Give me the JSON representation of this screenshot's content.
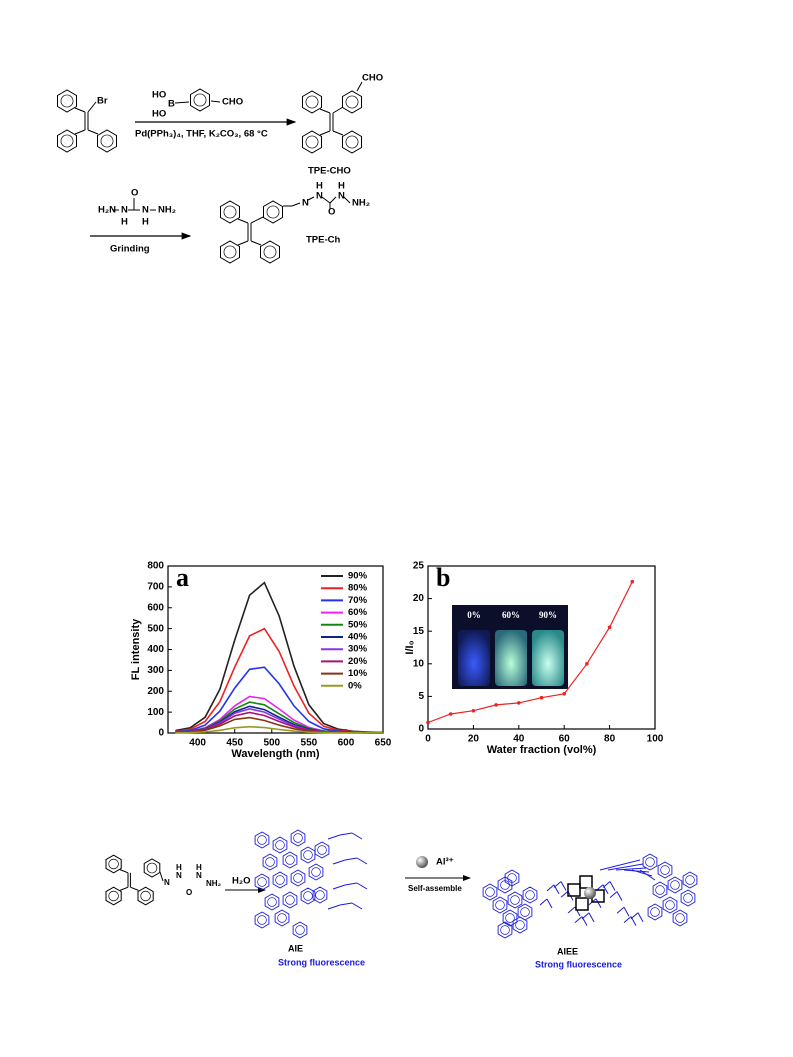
{
  "scheme1": {
    "reactant_label": "Br",
    "boronic_labels": [
      "HO",
      "B",
      "HO",
      "CHO"
    ],
    "conditions1": "Pd(PPh₃)₄, THF, K₂CO₃, 68 °C",
    "product1_label": "CHO",
    "product1_name": "TPE-CHO",
    "reagent_labels": [
      "H₂N",
      "N",
      "H",
      "O",
      "N",
      "H",
      "NH₂"
    ],
    "conditions2": "Grinding",
    "product2_labels": [
      "N",
      "N",
      "H",
      "O",
      "N",
      "H",
      "NH₂"
    ],
    "product2_name": "TPE-Ch"
  },
  "chart_data": [
    {
      "type": "line",
      "panel": "a",
      "xlabel": "Wavelength (nm)",
      "ylabel": "FL intensity",
      "x": [
        370,
        390,
        410,
        430,
        450,
        470,
        490,
        510,
        530,
        550,
        570,
        590,
        610,
        630,
        650
      ],
      "xlim": [
        360,
        650
      ],
      "xticks": [
        400,
        450,
        500,
        550,
        600,
        650
      ],
      "ylim": [
        0,
        800
      ],
      "yticks": [
        0,
        100,
        200,
        300,
        400,
        500,
        600,
        700,
        800
      ],
      "legend": "upper right",
      "series": [
        {
          "name": "90%",
          "color": "#222222",
          "values": [
            12,
            25,
            75,
            210,
            445,
            660,
            720,
            560,
            320,
            135,
            45,
            18,
            8,
            5,
            3
          ]
        },
        {
          "name": "80%",
          "color": "#ee2222",
          "values": [
            8,
            18,
            55,
            150,
            315,
            465,
            500,
            390,
            225,
            95,
            32,
            13,
            6,
            4,
            2
          ]
        },
        {
          "name": "70%",
          "color": "#2233ee",
          "values": [
            6,
            12,
            38,
            105,
            215,
            305,
            315,
            235,
            130,
            55,
            20,
            8,
            4,
            2,
            1
          ]
        },
        {
          "name": "60%",
          "color": "#ee22ee",
          "values": [
            4,
            8,
            25,
            65,
            130,
            175,
            165,
            115,
            62,
            27,
            10,
            5,
            3,
            2,
            1
          ]
        },
        {
          "name": "50%",
          "color": "#118811",
          "values": [
            4,
            8,
            22,
            58,
            115,
            148,
            135,
            92,
            50,
            22,
            9,
            4,
            2,
            1,
            1
          ]
        },
        {
          "name": "40%",
          "color": "#112288",
          "values": [
            3,
            7,
            20,
            52,
            102,
            128,
            112,
            75,
            40,
            18,
            7,
            3,
            2,
            1,
            1
          ]
        },
        {
          "name": "30%",
          "color": "#8833ee",
          "values": [
            3,
            6,
            18,
            48,
            95,
            116,
            100,
            66,
            35,
            15,
            6,
            3,
            2,
            1,
            1
          ]
        },
        {
          "name": "20%",
          "color": "#aa1177",
          "values": [
            3,
            6,
            16,
            42,
            82,
            98,
            84,
            55,
            29,
            13,
            5,
            3,
            2,
            1,
            1
          ]
        },
        {
          "name": "10%",
          "color": "#883311",
          "values": [
            2,
            5,
            13,
            34,
            65,
            74,
            60,
            38,
            20,
            9,
            4,
            2,
            1,
            1,
            1
          ]
        },
        {
          "name": "0%",
          "color": "#999922",
          "values": [
            1,
            2,
            5,
            13,
            25,
            30,
            26,
            17,
            9,
            4,
            2,
            1,
            1,
            1,
            1
          ]
        }
      ]
    },
    {
      "type": "line",
      "panel": "b",
      "xlabel": "Water fraction (vol%)",
      "ylabel": "I/I₀",
      "x": [
        0,
        10,
        20,
        30,
        40,
        50,
        60,
        70,
        80,
        90
      ],
      "xlim": [
        0,
        100
      ],
      "xticks": [
        0,
        20,
        40,
        60,
        80,
        100
      ],
      "ylim": [
        0,
        25
      ],
      "yticks": [
        0,
        5,
        10,
        15,
        20,
        25
      ],
      "series": [
        {
          "color": "#ee2222",
          "values": [
            1.0,
            2.3,
            2.8,
            3.7,
            4.0,
            4.8,
            5.4,
            10.0,
            15.6,
            22.6
          ]
        }
      ],
      "inset_labels": [
        "0%",
        "60%",
        "90%"
      ]
    }
  ],
  "scheme2": {
    "start_labels": [
      "N",
      "N",
      "H",
      "O",
      "N",
      "H",
      "NH₂"
    ],
    "step1": "H₂O",
    "ion": "Al³⁺",
    "step2": "Self-assemble",
    "state1": "AIE",
    "state1_note": "Strong fluorescence",
    "state2": "AIEE",
    "state2_note": "Strong fluorescence"
  }
}
